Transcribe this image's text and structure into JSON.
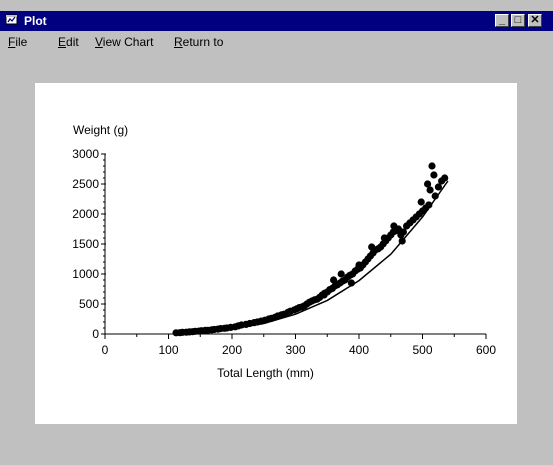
{
  "window": {
    "title": "Plot",
    "controls": {
      "minimize": "_",
      "maximize": "□",
      "close": "✕"
    },
    "icon": "window-app-icon"
  },
  "menu": [
    {
      "label": "File",
      "mnemonic": "F",
      "rest": "ile"
    },
    {
      "label": "Edit",
      "mnemonic": "E",
      "rest": "dit"
    },
    {
      "label": "View Chart",
      "mnemonic": "V",
      "rest": "iew Chart"
    },
    {
      "label": "Return to",
      "mnemonic": "R",
      "rest": "eturn to"
    }
  ],
  "chart_data": {
    "type": "scatter",
    "xlabel": "Total Length (mm)",
    "ylabel": "Weight (g)",
    "xlim": [
      0,
      600
    ],
    "ylim": [
      0,
      3000
    ],
    "xticks": [
      "0",
      "100",
      "200",
      "300",
      "400",
      "500",
      "600"
    ],
    "yticks": [
      "0",
      "500",
      "1000",
      "1500",
      "2000",
      "2500",
      "3000"
    ],
    "grid": false,
    "legend": "none",
    "marker_color": "#000000",
    "trend_line": {
      "type": "power",
      "x": [
        115,
        150,
        200,
        250,
        300,
        350,
        400,
        450,
        500,
        540
      ],
      "y": [
        15,
        35,
        85,
        175,
        330,
        560,
        890,
        1330,
        1950,
        2550
      ]
    },
    "points": {
      "x": [
        112,
        118,
        122,
        128,
        133,
        138,
        142,
        148,
        152,
        158,
        162,
        168,
        172,
        178,
        182,
        188,
        192,
        198,
        205,
        210,
        215,
        222,
        228,
        235,
        240,
        246,
        252,
        258,
        262,
        268,
        272,
        278,
        282,
        288,
        292,
        298,
        302,
        306,
        310,
        314,
        318,
        322,
        326,
        330,
        334,
        338,
        342,
        346,
        350,
        354,
        358,
        362,
        366,
        370,
        374,
        378,
        382,
        386,
        390,
        394,
        398,
        402,
        406,
        410,
        414,
        418,
        422,
        426,
        430,
        434,
        438,
        442,
        446,
        450,
        454,
        458,
        462,
        466,
        470,
        475,
        480,
        485,
        490,
        495,
        500,
        505,
        510,
        512,
        515,
        520,
        525,
        530,
        535,
        345,
        360,
        372,
        388,
        400,
        420,
        440,
        455,
        468,
        498,
        508,
        518
      ],
      "y": [
        20,
        22,
        28,
        30,
        35,
        38,
        45,
        48,
        55,
        60,
        62,
        70,
        75,
        82,
        90,
        95,
        100,
        110,
        120,
        135,
        150,
        160,
        175,
        190,
        200,
        215,
        230,
        250,
        260,
        280,
        300,
        320,
        330,
        360,
        380,
        400,
        420,
        440,
        450,
        470,
        500,
        530,
        550,
        570,
        580,
        610,
        650,
        680,
        700,
        740,
        760,
        800,
        820,
        850,
        880,
        900,
        950,
        980,
        1000,
        1050,
        1080,
        1100,
        1150,
        1200,
        1250,
        1300,
        1350,
        1400,
        1420,
        1450,
        1500,
        1550,
        1600,
        1650,
        1700,
        1720,
        1750,
        1650,
        1700,
        1800,
        1850,
        1900,
        1950,
        2000,
        2050,
        2100,
        2150,
        2400,
        2800,
        2300,
        2450,
        2550,
        2600,
        650,
        900,
        1000,
        850,
        1150,
        1450,
        1600,
        1800,
        1550,
        2200,
        2500,
        2650
      ]
    }
  }
}
